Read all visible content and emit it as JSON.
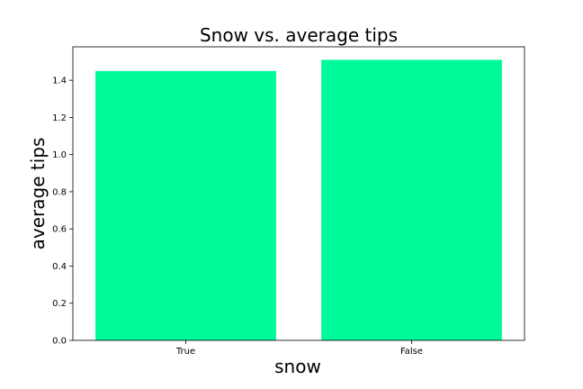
{
  "chart_data": {
    "type": "bar",
    "title": "Snow vs. average tips",
    "xlabel": "snow",
    "ylabel": "average tips",
    "categories": [
      "True",
      "False"
    ],
    "values": [
      1.45,
      1.51
    ],
    "ylim": [
      0,
      1.58
    ],
    "yticks": [
      0.0,
      0.2,
      0.4,
      0.6,
      0.8,
      1.0,
      1.2,
      1.4
    ],
    "ytick_labels": [
      "0.0",
      "0.2",
      "0.4",
      "0.6",
      "0.8",
      "1.0",
      "1.2",
      "1.4"
    ],
    "bar_color": "#00fa9a",
    "grid": false,
    "legend": "none"
  }
}
